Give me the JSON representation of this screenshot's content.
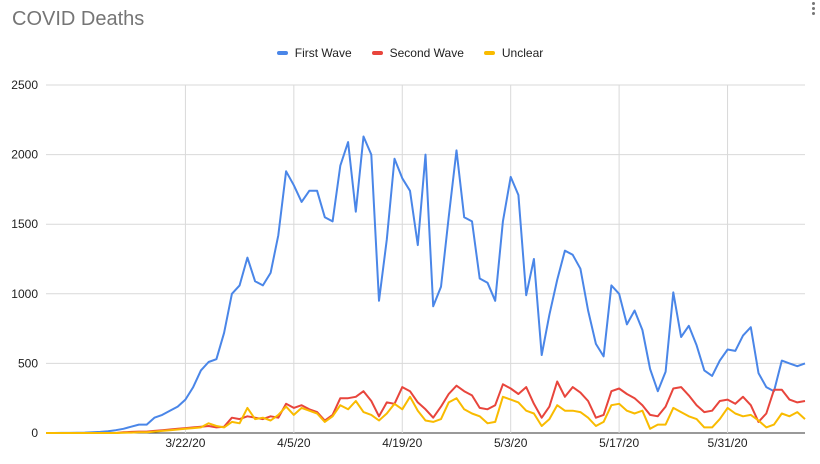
{
  "chart_title": "COVID Deaths",
  "colors": {
    "first_wave": "#4a86e8",
    "second_wave": "#e8453c",
    "unclear": "#f9bb00",
    "grid": "#d9d9d9",
    "axis_text": "#222222"
  },
  "icons": {
    "menu": "vertical-ellipsis-icon"
  },
  "chart_data": {
    "type": "line",
    "title": "COVID Deaths",
    "xlabel": "",
    "ylabel": "",
    "ylim": [
      0,
      2500
    ],
    "yticks": [
      "0",
      "500",
      "1000",
      "1500",
      "2000",
      "2500"
    ],
    "start_date": "3/4/20",
    "x_tick_labels": [
      {
        "day": 18,
        "label": "3/22/20"
      },
      {
        "day": 32,
        "label": "4/5/20"
      },
      {
        "day": 46,
        "label": "4/19/20"
      },
      {
        "day": 60,
        "label": "5/3/20"
      },
      {
        "day": 74,
        "label": "5/17/20"
      },
      {
        "day": 88,
        "label": "5/31/20"
      }
    ],
    "grid": true,
    "legend_position": "top",
    "series": [
      {
        "name": "First Wave",
        "color": "#4a86e8",
        "values": [
          0,
          0,
          1,
          1,
          2,
          3,
          5,
          8,
          12,
          20,
          30,
          45,
          60,
          60,
          110,
          130,
          160,
          190,
          240,
          330,
          450,
          510,
          530,
          720,
          1000,
          1060,
          1260,
          1090,
          1060,
          1150,
          1420,
          1880,
          1780,
          1660,
          1740,
          1740,
          1550,
          1520,
          1920,
          2090,
          1590,
          2130,
          2000,
          950,
          1390,
          1970,
          1830,
          1740,
          1350,
          2000,
          910,
          1050,
          1550,
          2030,
          1550,
          1520,
          1110,
          1080,
          950,
          1520,
          1840,
          1710,
          990,
          1250,
          560,
          850,
          1100,
          1310,
          1280,
          1180,
          880,
          640,
          550,
          1060,
          1000,
          780,
          880,
          740,
          460,
          300,
          440,
          1010,
          690,
          770,
          630,
          450,
          410,
          520,
          600,
          590,
          700,
          760,
          430,
          330,
          300,
          520,
          500,
          480,
          500
        ]
      },
      {
        "name": "Second Wave",
        "color": "#e8453c",
        "values": [
          0,
          0,
          0,
          0,
          0,
          0,
          0,
          0,
          0,
          0,
          5,
          8,
          10,
          10,
          15,
          20,
          25,
          30,
          35,
          40,
          45,
          50,
          40,
          45,
          110,
          100,
          120,
          110,
          100,
          120,
          110,
          210,
          180,
          200,
          170,
          150,
          90,
          130,
          250,
          250,
          260,
          300,
          230,
          120,
          220,
          210,
          330,
          300,
          220,
          170,
          110,
          190,
          280,
          340,
          300,
          270,
          180,
          170,
          200,
          350,
          320,
          280,
          330,
          210,
          110,
          190,
          370,
          260,
          330,
          290,
          230,
          110,
          130,
          300,
          320,
          280,
          250,
          200,
          130,
          120,
          190,
          320,
          330,
          270,
          200,
          150,
          160,
          230,
          240,
          210,
          260,
          200,
          80,
          140,
          310,
          310,
          240,
          220,
          230
        ]
      },
      {
        "name": "Unclear",
        "color": "#f9bb00",
        "values": [
          0,
          0,
          0,
          0,
          0,
          0,
          0,
          0,
          0,
          0,
          2,
          3,
          5,
          5,
          10,
          15,
          20,
          25,
          30,
          35,
          40,
          70,
          50,
          40,
          80,
          70,
          180,
          100,
          110,
          90,
          130,
          190,
          130,
          180,
          160,
          140,
          80,
          120,
          200,
          170,
          230,
          150,
          130,
          90,
          140,
          210,
          170,
          260,
          160,
          90,
          80,
          100,
          220,
          250,
          170,
          140,
          120,
          70,
          80,
          260,
          240,
          220,
          160,
          140,
          50,
          100,
          200,
          160,
          160,
          150,
          110,
          50,
          80,
          200,
          210,
          160,
          140,
          160,
          30,
          60,
          60,
          180,
          150,
          120,
          100,
          40,
          40,
          100,
          180,
          140,
          120,
          130,
          90,
          40,
          60,
          140,
          120,
          150,
          100
        ]
      }
    ]
  }
}
